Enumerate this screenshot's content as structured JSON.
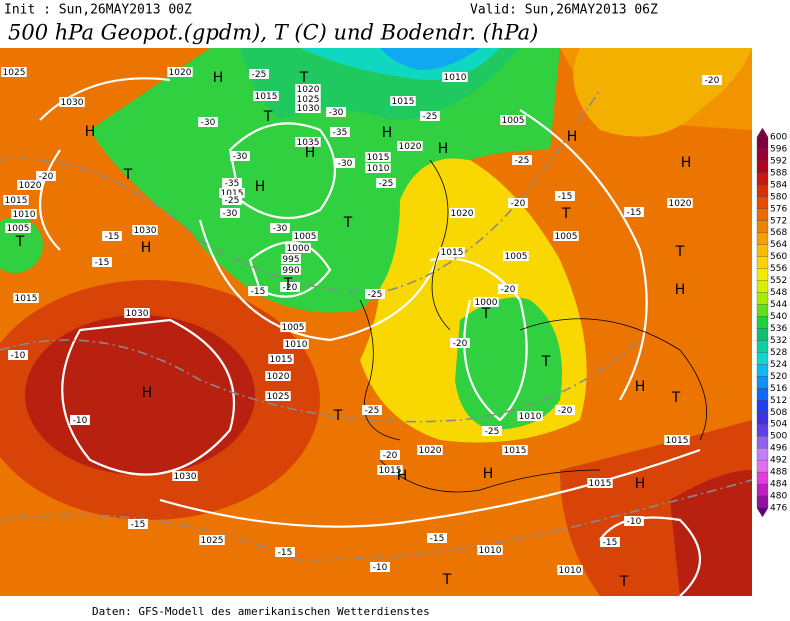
{
  "header": {
    "init": "Init : Sun,26MAY2013 00Z",
    "valid": "Valid: Sun,26MAY2013 06Z",
    "title": "500 hPa Geopot.(gpdm), T (C) und Bodendr. (hPa)"
  },
  "footer": "Daten: GFS-Modell des amerikanischen Wetterdienstes",
  "legend": {
    "levels": [
      600,
      596,
      592,
      588,
      584,
      580,
      576,
      572,
      568,
      564,
      560,
      556,
      552,
      548,
      544,
      540,
      536,
      532,
      528,
      524,
      520,
      516,
      512,
      508,
      504,
      500,
      496,
      492,
      488,
      484,
      480,
      476
    ],
    "colors": [
      "#7a0040",
      "#9a0030",
      "#b40020",
      "#c81810",
      "#d83008",
      "#e44c00",
      "#ec6a00",
      "#f08400",
      "#f4a000",
      "#f8bc00",
      "#fcd400",
      "#f4ec00",
      "#d8f000",
      "#a8ec00",
      "#60e020",
      "#20d040",
      "#10c070",
      "#10d0a0",
      "#10d8d0",
      "#10b8f0",
      "#1090f8",
      "#1068f8",
      "#2040f0",
      "#4030e0",
      "#6040e8",
      "#9060f0",
      "#c080f8",
      "#e070f0",
      "#e040d8",
      "#c020c0",
      "#9010a0",
      "#600080"
    ]
  },
  "isobar_labels": [
    "1025",
    "1020",
    "1030",
    "1015",
    "1020",
    "1025",
    "1030",
    "1010",
    "1015",
    "1005",
    "1020",
    "1015",
    "1010",
    "1035",
    "1020",
    "1015",
    "1010",
    "1005",
    "1030",
    "1015",
    "1005",
    "1000",
    "995",
    "990",
    "1020",
    "1015",
    "1005",
    "1000",
    "1015",
    "1030",
    "1005",
    "1010",
    "1015",
    "1020",
    "1025",
    "1010",
    "1015",
    "1020",
    "1015",
    "1015",
    "1030",
    "1025",
    "1010",
    "1010",
    "1005",
    "1020",
    "1015"
  ],
  "temperature_labels": [
    "-25",
    "-30",
    "-25",
    "-30",
    "-35",
    "-30",
    "-30",
    "-25",
    "-25",
    "-20",
    "-35",
    "-30",
    "-25",
    "-30",
    "-20",
    "-15",
    "-25",
    "-15",
    "-15",
    "-20",
    "-15",
    "-15",
    "-20",
    "-20",
    "-10",
    "-10",
    "-25",
    "-20",
    "-25",
    "-20",
    "-15",
    "-15",
    "-15",
    "-10",
    "-10",
    "-20",
    "-15"
  ],
  "pressure_systems": [
    "H",
    "T",
    "H",
    "T",
    "H",
    "T",
    "H",
    "H",
    "T",
    "T",
    "H",
    "H",
    "H",
    "T",
    "T",
    "H",
    "T",
    "H",
    "T",
    "T",
    "H",
    "T",
    "H",
    "T",
    "H",
    "H",
    "H",
    "T",
    "T"
  ]
}
